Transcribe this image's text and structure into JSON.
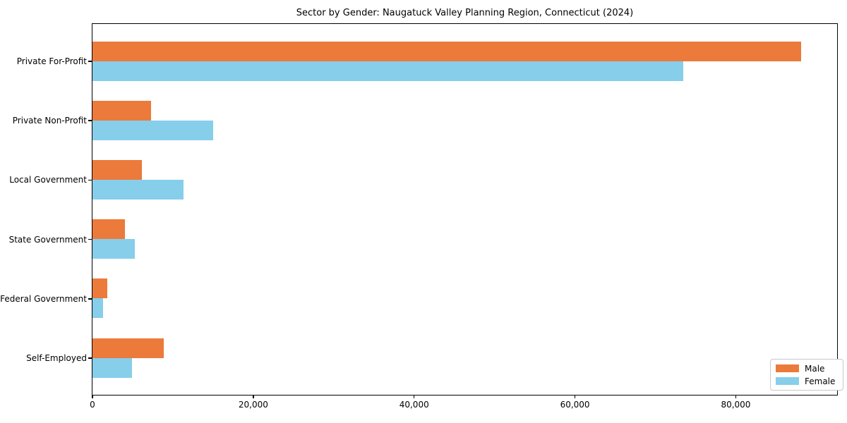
{
  "chart_data": {
    "type": "bar",
    "orientation": "horizontal",
    "title": "Sector by Gender: Naugatuck Valley Planning Region, Connecticut (2024)",
    "categories": [
      "Private For-Profit",
      "Private Non-Profit",
      "Local Government",
      "State Government",
      "Federal Government",
      "Self-Employed"
    ],
    "series": [
      {
        "name": "Male",
        "color": "#EB7A3B",
        "values": [
          88200,
          7330,
          6170,
          4060,
          1870,
          8890
        ]
      },
      {
        "name": "Female",
        "color": "#87CEEB",
        "values": [
          73500,
          15060,
          11370,
          5300,
          1320,
          4940
        ]
      }
    ],
    "xlim": [
      0,
      92600
    ],
    "xticks": [
      0,
      20000,
      40000,
      60000,
      80000
    ],
    "xtick_labels": [
      "0",
      "20,000",
      "40,000",
      "60,000",
      "80,000"
    ],
    "ylabel": "",
    "xlabel": "",
    "grid": false,
    "legend": {
      "position": "lower-right",
      "entries": [
        "Male",
        "Female"
      ]
    },
    "colors": {
      "background": "#ffffff",
      "axis": "#000000",
      "legend_border": "#c8c8c8"
    }
  }
}
